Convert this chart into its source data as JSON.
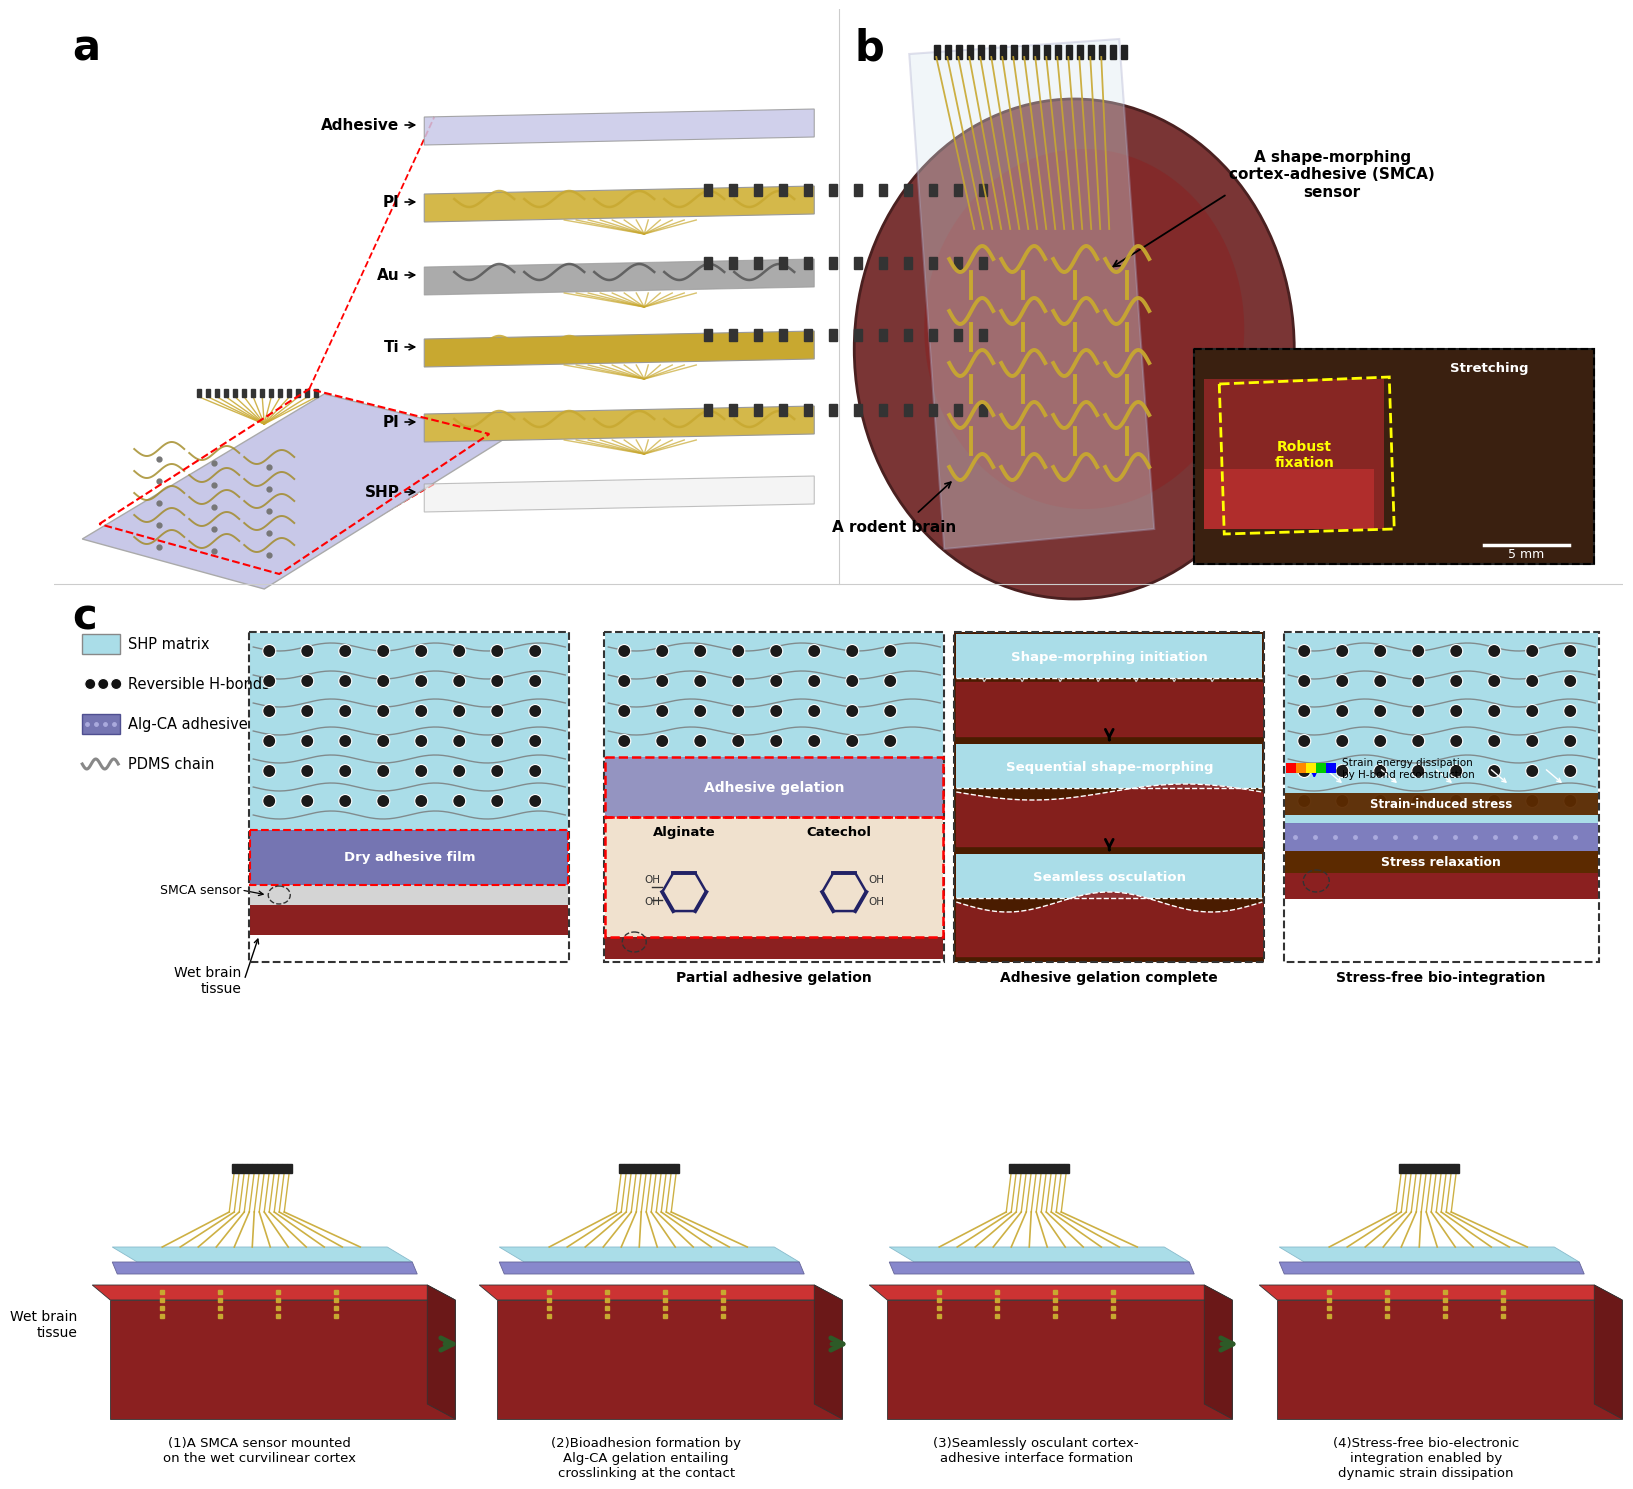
{
  "panel_a_label": "a",
  "panel_b_label": "b",
  "panel_c_label": "c",
  "layer_labels": [
    "Adhesive",
    "PI",
    "Au",
    "Ti",
    "PI",
    "SHP"
  ],
  "panel_b_annotation": "A shape-morphing\ncortex-adhesive (SMCA)\nsensor",
  "panel_b_brain": "A rodent brain",
  "legend_items": [
    "SHP matrix",
    "Reversible H-bonds",
    "Alg-CA adhesive",
    "PDMS chain"
  ],
  "step_labels": [
    "(1)A SMCA sensor mounted\non the wet curvilinear cortex",
    "(2)Bioadhesion formation by\nAlg-CA gelation entailing\ncrosslinking at the contact",
    "(3)Seamlessly osculant cortex-\nadhesive interface formation",
    "(4)Stress-free bio-electronic\nintegration enabled by\ndynamic strain dissipation"
  ],
  "morphing_labels": [
    "Shape-morphing initiation",
    "Sequential shape-morphing",
    "Seamless osculation"
  ],
  "wet_tissue": "Wet brain\ntissue",
  "bg_color": "#ffffff",
  "shp_color": "#aadde8",
  "adhesive_color": "#8888cc",
  "tissue_color": "#8b2020",
  "tissue_dark": "#5c1a1a",
  "gold_color": "#c8a830",
  "arrow_color": "#2d5a27",
  "dark_brown": "#4a1c00",
  "c_separator": 575
}
